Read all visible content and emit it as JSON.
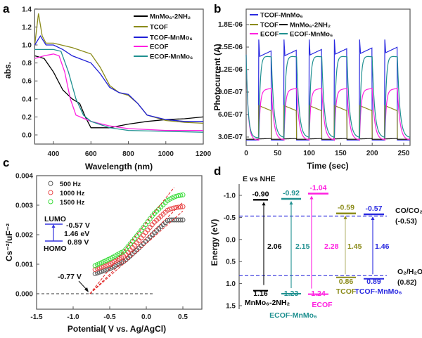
{
  "chart_data": [
    {
      "panel": "a",
      "type": "line",
      "xlabel": "Wavelength (nm)",
      "ylabel": "abs.",
      "xlim": [
        300,
        1200
      ],
      "ylim": [
        -0.1,
        1.4
      ],
      "xticks": [
        400,
        600,
        800,
        1000,
        1200
      ],
      "yticks": [
        "0.0",
        "0.2",
        "0.4",
        "0.6",
        "0.8",
        "1.0",
        "1.2",
        "1.4"
      ],
      "legend_position": "top-right",
      "series": [
        {
          "name": "MnMo₆-2NH₂",
          "color": "#000000",
          "points": [
            [
              300,
              0.88
            ],
            [
              350,
              0.85
            ],
            [
              400,
              0.7
            ],
            [
              450,
              0.5
            ],
            [
              500,
              0.4
            ],
            [
              540,
              0.35
            ],
            [
              570,
              0.2
            ],
            [
              600,
              0.08
            ],
            [
              700,
              0.08
            ],
            [
              800,
              0.12
            ],
            [
              900,
              0.15
            ],
            [
              1000,
              0.17
            ],
            [
              1100,
              0.18
            ],
            [
              1200,
              0.2
            ]
          ]
        },
        {
          "name": "TCOF",
          "color": "#8b8b1a",
          "points": [
            [
              300,
              1.0
            ],
            [
              320,
              1.35
            ],
            [
              340,
              1.1
            ],
            [
              360,
              1.02
            ],
            [
              400,
              1.02
            ],
            [
              500,
              0.97
            ],
            [
              600,
              0.9
            ],
            [
              650,
              0.75
            ],
            [
              700,
              0.55
            ],
            [
              750,
              0.47
            ],
            [
              800,
              0.44
            ],
            [
              850,
              0.35
            ],
            [
              900,
              0.22
            ],
            [
              1000,
              0.16
            ],
            [
              1100,
              0.14
            ],
            [
              1200,
              0.13
            ]
          ]
        },
        {
          "name": "TCOF-MnMo₆",
          "color": "#1f1fd6",
          "points": [
            [
              300,
              1.0
            ],
            [
              330,
              1.1
            ],
            [
              360,
              1.0
            ],
            [
              400,
              1.0
            ],
            [
              450,
              0.95
            ],
            [
              500,
              0.88
            ],
            [
              600,
              0.8
            ],
            [
              650,
              0.68
            ],
            [
              700,
              0.53
            ],
            [
              750,
              0.47
            ],
            [
              800,
              0.45
            ],
            [
              850,
              0.35
            ],
            [
              900,
              0.22
            ],
            [
              1000,
              0.17
            ],
            [
              1100,
              0.15
            ],
            [
              1200,
              0.15
            ]
          ]
        },
        {
          "name": "ECOF",
          "color": "#ff1fe0",
          "points": [
            [
              300,
              0.85
            ],
            [
              350,
              0.88
            ],
            [
              400,
              0.9
            ],
            [
              430,
              0.88
            ],
            [
              460,
              0.7
            ],
            [
              490,
              0.4
            ],
            [
              520,
              0.22
            ],
            [
              600,
              0.15
            ],
            [
              700,
              0.1
            ],
            [
              800,
              0.07
            ],
            [
              1000,
              0.05
            ],
            [
              1200,
              0.05
            ]
          ]
        },
        {
          "name": "ECOF-MnMo₆",
          "color": "#1f9090",
          "points": [
            [
              300,
              0.95
            ],
            [
              350,
              0.95
            ],
            [
              400,
              0.95
            ],
            [
              440,
              0.93
            ],
            [
              480,
              0.7
            ],
            [
              520,
              0.4
            ],
            [
              560,
              0.22
            ],
            [
              600,
              0.15
            ],
            [
              700,
              0.08
            ],
            [
              800,
              0.05
            ],
            [
              1000,
              0.04
            ],
            [
              1200,
              0.03
            ]
          ]
        }
      ]
    },
    {
      "panel": "b",
      "type": "line",
      "xlabel": "Time (sec)",
      "ylabel": "Photocurrent (A)",
      "xlim": [
        0,
        260
      ],
      "ylim": [
        1.9e-07,
        2e-06
      ],
      "xticks": [
        0,
        50,
        100,
        150,
        200,
        250
      ],
      "yticks": [
        {
          "v": 3e-07,
          "label": "3.0E-07"
        },
        {
          "v": 6e-07,
          "label": "6.0E-07"
        },
        {
          "v": 9e-07,
          "label": "9.0E-07"
        },
        {
          "v": 1.2e-06,
          "label": "1.2E-06"
        },
        {
          "v": 1.5e-06,
          "label": "1.5E-06"
        },
        {
          "v": 1.8e-06,
          "label": "1.8E-06"
        }
      ],
      "light_on_intervals": [
        [
          20,
          40
        ],
        [
          60,
          80
        ],
        [
          100,
          120
        ],
        [
          140,
          160
        ],
        [
          180,
          200
        ],
        [
          220,
          240
        ]
      ],
      "legend_position": "top-left",
      "series": [
        {
          "name": "TCOF-MnMo₆",
          "color": "#2a2ae0",
          "dark": 2.6e-07,
          "light_start": 1.37e-06,
          "light_end": 1.45e-06,
          "spike": 1.6e-06
        },
        {
          "name": "TCOF",
          "color": "#8b8b1a",
          "dark": 2.7e-07,
          "light_start": 7.2e-07,
          "light_end": 6.5e-07
        },
        {
          "name": "MnMo₆-2NH₂",
          "color": "#111111",
          "dark": 2.7e-07,
          "light_start": 2.75e-07,
          "light_end": 2.8e-07
        },
        {
          "name": "ECOF",
          "color": "#ff1fe0",
          "dark": 2.6e-07,
          "light_start": 9.2e-07,
          "light_end": 9.5e-07
        },
        {
          "name": "ECOF-MnMo₆",
          "color": "#1f9090",
          "dark": 2.9e-07,
          "light_start": 1.39e-06,
          "light_end": 1.37e-06
        }
      ]
    },
    {
      "panel": "c",
      "type": "scatter",
      "xlabel": "Potential( V vs. Ag/AgCl)",
      "ylabel": "Cs⁻²/uF⁻²",
      "xlim": [
        -1.5,
        0.76
      ],
      "ylim": [
        -0.0005,
        0.004
      ],
      "xticks": [
        "-1.5",
        "-1.0",
        "-0.5",
        "0.0",
        "0.5"
      ],
      "yticks": [
        "0.000",
        "0.001",
        "0.002",
        "0.003",
        "0.004"
      ],
      "legend_position": "top-left",
      "x": [
        -0.7,
        -0.5,
        -0.3,
        -0.1,
        0.1,
        0.3,
        0.4,
        0.5
      ],
      "series": [
        {
          "name": "500 Hz",
          "color": "#555555",
          "values": [
            0.00068,
            0.00085,
            0.0011,
            0.00155,
            0.00205,
            0.0025,
            0.0025,
            0.0025
          ],
          "fit_end": [
            0.5,
            0.0028
          ]
        },
        {
          "name": "1000 Hz",
          "color": "#e84848",
          "values": [
            0.00082,
            0.001,
            0.00128,
            0.0018,
            0.0024,
            0.00285,
            0.00292,
            0.00295
          ],
          "fit_end": [
            0.5,
            0.0031
          ]
        },
        {
          "name": "1500 Hz",
          "color": "#3adc3a",
          "values": [
            0.00095,
            0.00118,
            0.00145,
            0.00205,
            0.0027,
            0.00318,
            0.0033,
            0.00335
          ],
          "fit_end": [
            0.38,
            0.0036
          ]
        }
      ],
      "intercept_label": "-0.77 V",
      "intercept": -0.77,
      "inset": {
        "lumo": "LUMO",
        "homo": "HOMO",
        "lumo_value": "-0.57 V",
        "gap": "1.46 eV",
        "homo_value": "0.89 V",
        "color": "#3333dd"
      }
    },
    {
      "panel": "d",
      "type": "band-diagram",
      "title": "E vs NHE",
      "ylabel": "Energy (eV)",
      "ylim": [
        -1.2,
        1.5
      ],
      "yticks": [
        "-1.0",
        "-0.5",
        "0.0",
        "0.5",
        "1.0",
        "1.5"
      ],
      "reference_lines": [
        {
          "label": "CO/CO₂",
          "value_label": "(-0.53)",
          "value": -0.53
        },
        {
          "label": "O₂/H₂O",
          "value_label": "(0.82)",
          "value": 0.82
        }
      ],
      "reference_color": "#3333dd",
      "materials": [
        {
          "name": "MnMo₆-2NH₂",
          "lumo": -0.9,
          "homo": 1.16,
          "lumo_label": "-0.90",
          "homo_label": "1.16",
          "gap": "2.06",
          "color": "#000000"
        },
        {
          "name": "ECOF-MnMo₆",
          "lumo": -0.92,
          "homo": 1.23,
          "lumo_label": "-0.92",
          "homo_label": "1.23",
          "gap": "2.15",
          "color": "#1f9090"
        },
        {
          "name": "ECOF",
          "lumo": -1.04,
          "homo": 1.24,
          "lumo_label": "-1.04",
          "homo_label": "1.24",
          "gap": "2.28",
          "color": "#ff1fe0"
        },
        {
          "name": "TCOF",
          "lumo": -0.59,
          "homo": 0.86,
          "lumo_label": "-0.59",
          "homo_label": "0.86",
          "gap": "1.45",
          "color": "#8b8b1a"
        },
        {
          "name": "TCOF-MnMo₆",
          "lumo": -0.57,
          "homo": 0.89,
          "lumo_label": "-0.57",
          "homo_label": "0.89",
          "gap": "1.46",
          "color": "#2a2ae0"
        }
      ]
    }
  ]
}
